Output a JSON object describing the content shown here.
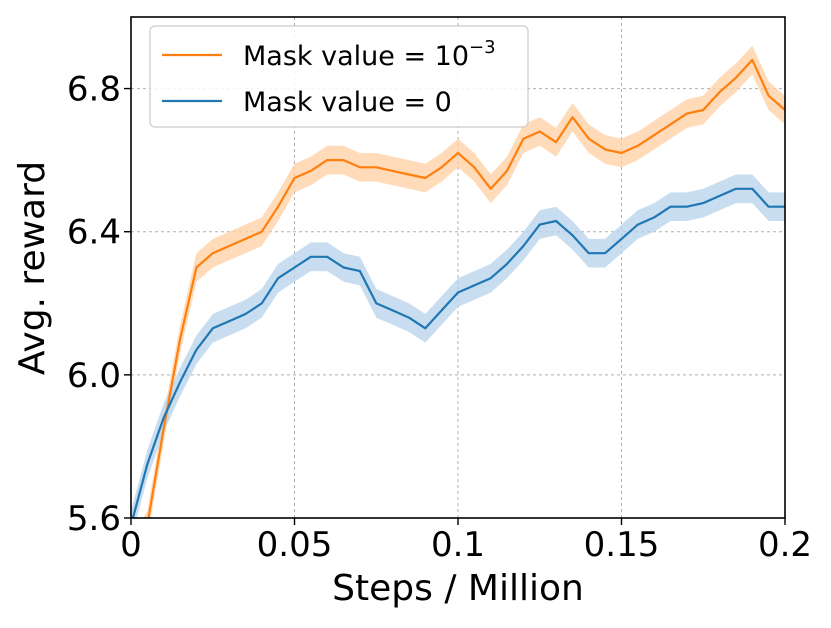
{
  "chart_data": {
    "type": "line",
    "xlabel": "Steps / Million",
    "ylabel": "Avg. reward",
    "xlim": [
      0,
      0.2
    ],
    "ylim": [
      5.6,
      7.0
    ],
    "grid": true,
    "legend_position": "top-left",
    "x_ticks": [
      {
        "value": 0,
        "label": "0"
      },
      {
        "value": 0.05,
        "label": "0.05"
      },
      {
        "value": 0.1,
        "label": "0.1"
      },
      {
        "value": 0.15,
        "label": "0.15"
      },
      {
        "value": 0.2,
        "label": "0.2"
      }
    ],
    "y_ticks": [
      {
        "value": 5.6,
        "label": "5.6"
      },
      {
        "value": 6.0,
        "label": "6.0"
      },
      {
        "value": 6.4,
        "label": "6.4"
      },
      {
        "value": 6.8,
        "label": "6.8"
      }
    ],
    "x": [
      0.0,
      0.005,
      0.01,
      0.015,
      0.02,
      0.025,
      0.03,
      0.035,
      0.04,
      0.045,
      0.05,
      0.055,
      0.06,
      0.065,
      0.07,
      0.075,
      0.08,
      0.085,
      0.09,
      0.095,
      0.1,
      0.105,
      0.11,
      0.115,
      0.12,
      0.125,
      0.13,
      0.135,
      0.14,
      0.145,
      0.15,
      0.155,
      0.16,
      0.165,
      0.17,
      0.175,
      0.18,
      0.185,
      0.19,
      0.195,
      0.2
    ],
    "series": [
      {
        "name_prefix": "Mask value = 10",
        "name_superscript": "−3",
        "color": "#ff7f0e",
        "band_color": "#ffcfa3",
        "values": [
          5.5,
          5.58,
          5.85,
          6.1,
          6.3,
          6.34,
          6.36,
          6.38,
          6.4,
          6.47,
          6.55,
          6.57,
          6.6,
          6.6,
          6.58,
          6.58,
          6.57,
          6.56,
          6.55,
          6.58,
          6.62,
          6.58,
          6.52,
          6.57,
          6.66,
          6.68,
          6.65,
          6.72,
          6.66,
          6.63,
          6.62,
          6.64,
          6.67,
          6.7,
          6.73,
          6.74,
          6.79,
          6.83,
          6.88,
          6.78,
          6.74
        ],
        "spread": 0.04
      },
      {
        "name": "Mask value = 0",
        "color": "#1f77b4",
        "band_color": "#b5d2ea",
        "values": [
          5.58,
          5.75,
          5.88,
          5.98,
          6.07,
          6.13,
          6.15,
          6.17,
          6.2,
          6.27,
          6.3,
          6.33,
          6.33,
          6.3,
          6.29,
          6.2,
          6.18,
          6.16,
          6.13,
          6.18,
          6.23,
          6.25,
          6.27,
          6.31,
          6.36,
          6.42,
          6.43,
          6.39,
          6.34,
          6.34,
          6.38,
          6.42,
          6.44,
          6.47,
          6.47,
          6.48,
          6.5,
          6.52,
          6.52,
          6.47,
          6.47
        ],
        "spread": 0.04
      }
    ]
  }
}
